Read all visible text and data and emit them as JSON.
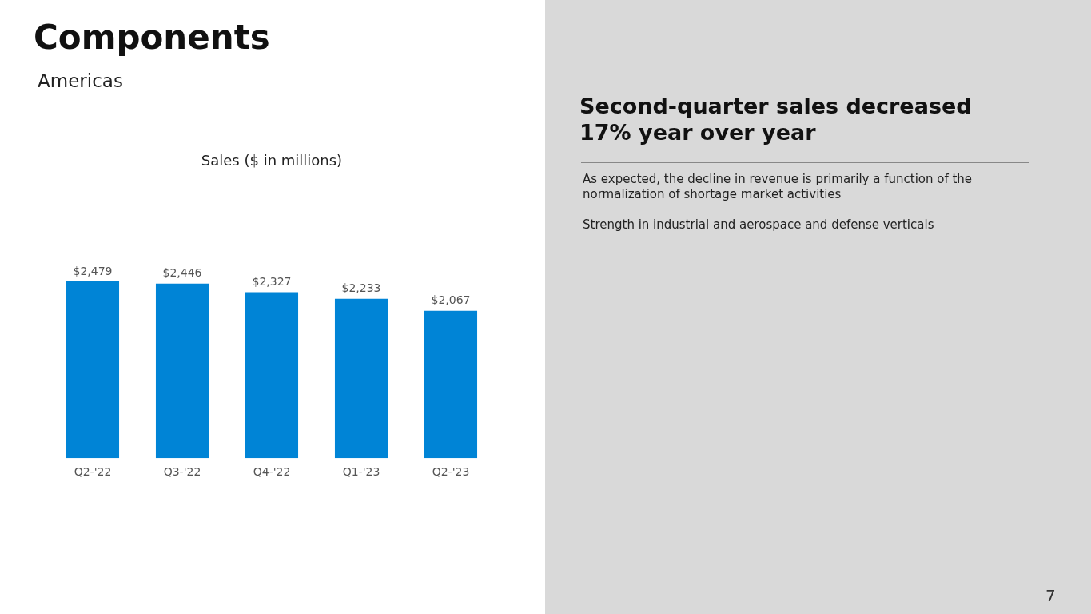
{
  "chart_data": {
    "type": "bar",
    "title": "Components",
    "subtitle": "Americas",
    "categories": [
      "Q2-'22",
      "Q3-'22",
      "Q4-'22",
      "Q1-'23",
      "Q2-'23"
    ],
    "values": [
      2479,
      2446,
      2327,
      2233,
      2067
    ],
    "value_labels": [
      "$2,479",
      "$2,446",
      "$2,327",
      "$2,233",
      "$2,067"
    ],
    "color": "#0084d6",
    "annotations": [
      "Sales ($ in millions)",
      "Second-quarter sales decreased 17% year over year",
      "As expected, the decline in revenue is primarily a function of the normalization of shortage market activities",
      "Strength in industrial and aerospace and defense verticals",
      "7"
    ],
    "grid": false,
    "legend": false
  }
}
